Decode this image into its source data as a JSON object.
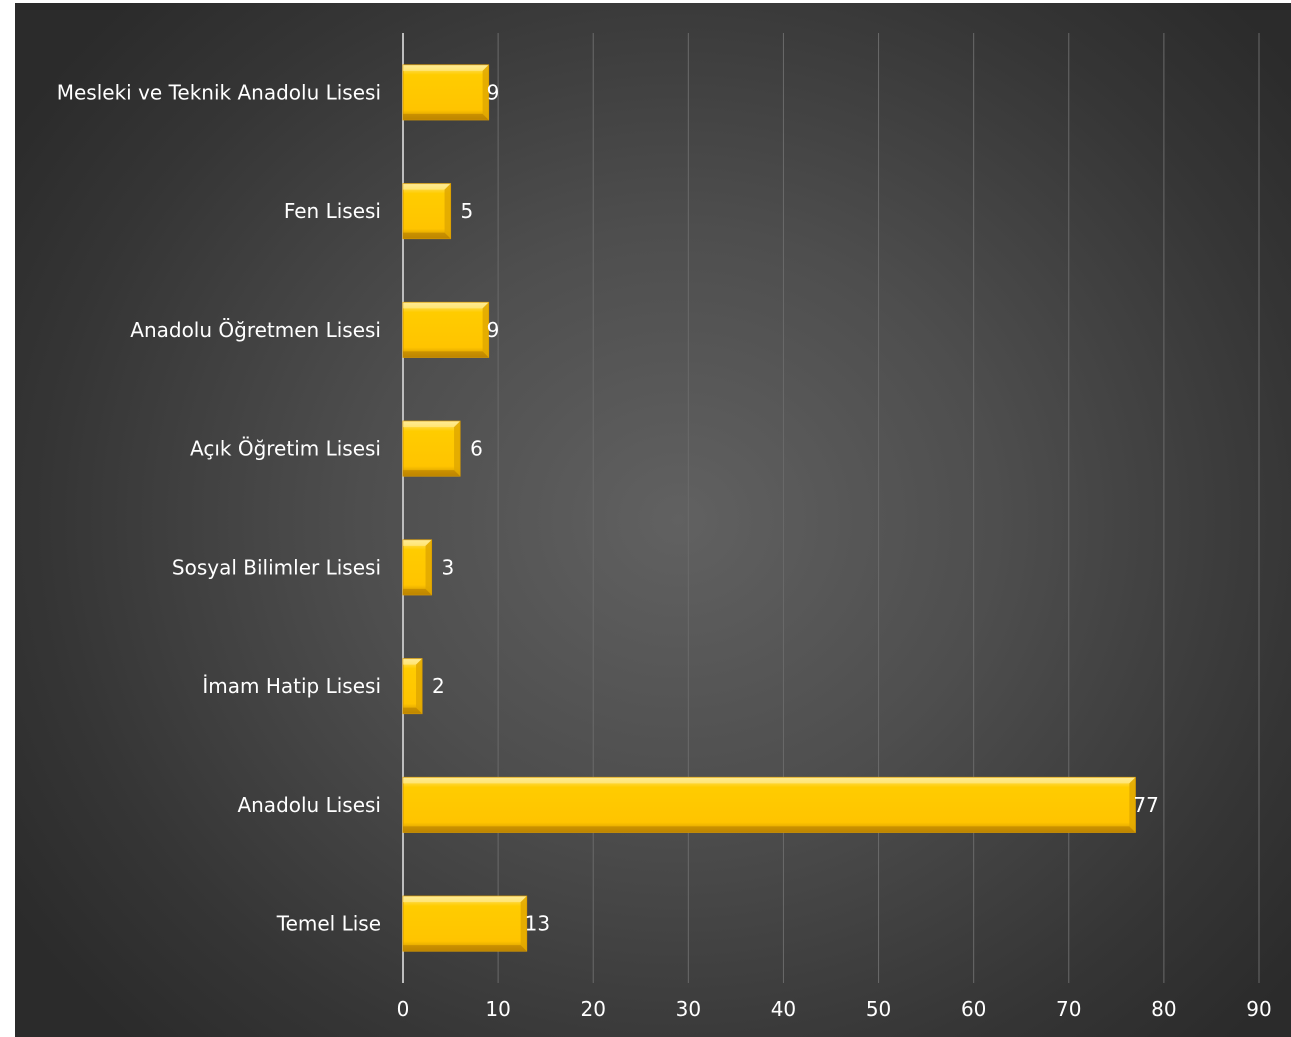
{
  "chart_data": {
    "type": "bar",
    "orientation": "horizontal",
    "title": "",
    "xlabel": "",
    "ylabel": "",
    "categories": [
      "Mesleki ve Teknik Anadolu Lisesi",
      "Fen Lisesi",
      "Anadolu Öğretmen Lisesi",
      "Açık Öğretim Lisesi",
      "Sosyal Bilimler Lisesi",
      "İmam Hatip Lisesi",
      "Anadolu Lisesi",
      "Temel Lise"
    ],
    "values": [
      9,
      5,
      9,
      6,
      3,
      2,
      77,
      13
    ],
    "value_labels": [
      "9",
      "5",
      "9",
      "6",
      "3",
      "2",
      "77",
      "13"
    ],
    "xlim": [
      0,
      90
    ],
    "xticks": [
      "0",
      "10",
      "20",
      "30",
      "40",
      "50",
      "60",
      "70",
      "80",
      "90"
    ],
    "grid": true,
    "legend": "none",
    "colors": {
      "bar": "#ffc800",
      "bar_edge": "#d99a00",
      "bar_highlight": "#fff1a8",
      "background": "#4a4a4a",
      "text": "#ffffff",
      "grid": "#6a6a6a",
      "axis": "#bdbdbd"
    }
  }
}
